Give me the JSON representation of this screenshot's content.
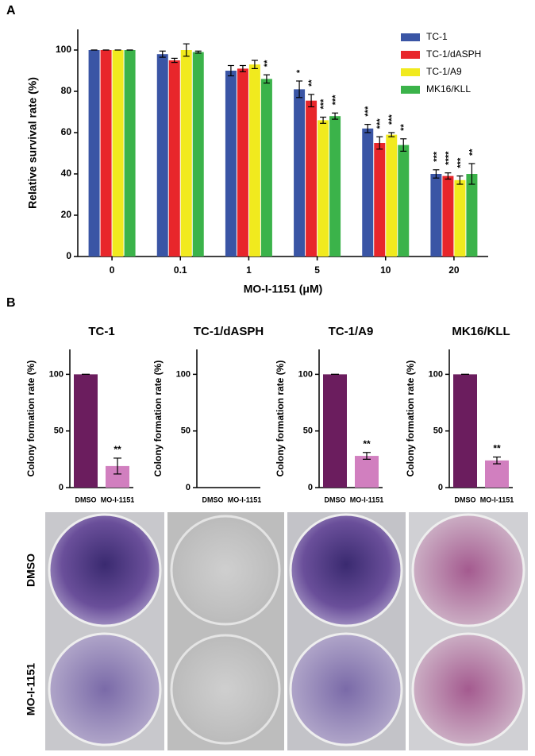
{
  "chart_data": [
    {
      "type": "grouped_bar",
      "panel": "A",
      "xlabel": "MO-I-1151 (μM)",
      "ylabel": "Relative survival rate (%)",
      "categories": [
        "0",
        "0.1",
        "1",
        "5",
        "10",
        "20"
      ],
      "series": [
        {
          "name": "TC-1",
          "color": "#3a55a5",
          "values": [
            100,
            98,
            90,
            81,
            62,
            40
          ],
          "errors": [
            0,
            1.5,
            2.5,
            4,
            2,
            2
          ],
          "annotations": [
            null,
            null,
            null,
            "*",
            "***",
            "***"
          ]
        },
        {
          "name": "TC-1/dASPH",
          "color": "#e8262b",
          "values": [
            100,
            95,
            91,
            75.5,
            55,
            39
          ],
          "errors": [
            0,
            1,
            1.5,
            3,
            3,
            1.5
          ],
          "annotations": [
            null,
            null,
            null,
            "**",
            "***",
            "****"
          ]
        },
        {
          "name": "TC-1/A9",
          "color": "#f1ea1e",
          "values": [
            100,
            100,
            93,
            66,
            59,
            37
          ],
          "errors": [
            0,
            3,
            2,
            1.5,
            1,
            2
          ],
          "annotations": [
            null,
            null,
            null,
            "***",
            "***",
            "***"
          ]
        },
        {
          "name": "MK16/KLL",
          "color": "#3bb34a",
          "values": [
            100,
            99,
            86,
            68,
            54,
            40
          ],
          "errors": [
            0,
            0.5,
            2,
            1.5,
            3,
            5
          ],
          "annotations": [
            null,
            null,
            "**",
            "***",
            "**",
            "**"
          ]
        }
      ],
      "ylim": [
        0,
        110
      ],
      "yticks": [
        0,
        20,
        40,
        60,
        80,
        100
      ],
      "legend": "upper right"
    },
    {
      "type": "bar",
      "panel": "B",
      "title": "TC-1",
      "ylabel": "Colony formation rate (%)",
      "categories": [
        "DMSO",
        "MO-I-1151"
      ],
      "values": [
        100,
        19
      ],
      "errors": [
        0,
        7
      ],
      "annotations": [
        null,
        "**"
      ],
      "colors": [
        "#6b1d5e",
        "#d17fbf"
      ],
      "ylim": [
        0,
        122
      ],
      "yticks": [
        0,
        50,
        100
      ]
    },
    {
      "type": "bar",
      "title": "TC-1/dASPH",
      "ylabel": "Colony formation rate (%)",
      "categories": [
        "DMSO",
        "MO-I-1151"
      ],
      "values": [
        null,
        null
      ],
      "errors": [
        null,
        null
      ],
      "annotations": [
        null,
        null
      ],
      "colors": [
        "#6b1d5e",
        "#d17fbf"
      ],
      "ylim": [
        0,
        122
      ],
      "yticks": [
        0,
        50,
        100
      ]
    },
    {
      "type": "bar",
      "title": "TC-1/A9",
      "ylabel": "Colony formation rate (%)",
      "categories": [
        "DMSO",
        "MO-I-1151"
      ],
      "values": [
        100,
        28
      ],
      "errors": [
        0,
        3
      ],
      "annotations": [
        null,
        "**"
      ],
      "colors": [
        "#6b1d5e",
        "#d17fbf"
      ],
      "ylim": [
        0,
        122
      ],
      "yticks": [
        0,
        50,
        100
      ]
    },
    {
      "type": "bar",
      "title": "MK16/KLL",
      "ylabel": "Colony formation rate (%)",
      "categories": [
        "DMSO",
        "MO-I-1151"
      ],
      "values": [
        100,
        24
      ],
      "errors": [
        0,
        3
      ],
      "annotations": [
        null,
        "**"
      ],
      "colors": [
        "#6b1d5e",
        "#d17fbf"
      ],
      "ylim": [
        0,
        122
      ],
      "yticks": [
        0,
        50,
        100
      ]
    }
  ],
  "photo_rows": [
    "DMSO",
    "MO-I-1151"
  ]
}
